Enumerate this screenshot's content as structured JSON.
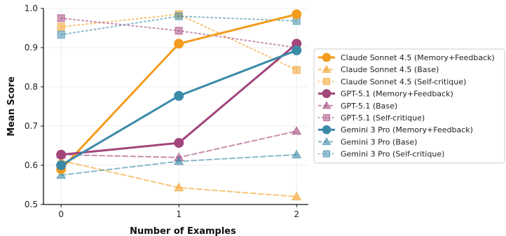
{
  "chart_data": {
    "type": "line",
    "title": "",
    "xlabel": "Number of Examples",
    "ylabel": "Mean Score",
    "x": [
      0,
      1,
      2
    ],
    "xticks": [
      "0",
      "1",
      "2"
    ],
    "yticks": [
      "0.5",
      "0.6",
      "0.7",
      "0.8",
      "0.9",
      "1.0"
    ],
    "ylim": [
      0.5,
      1.0
    ],
    "xlim": [
      -0.15,
      2.1
    ],
    "grid": true,
    "legend_position": "right",
    "series": [
      {
        "name": "Claude Sonnet 4.5 (Memory+Feedback)",
        "model": "claude",
        "variant": "memory",
        "color": "#F39C1E",
        "values": [
          0.59,
          0.91,
          0.985
        ]
      },
      {
        "name": "Claude Sonnet 4.5 (Base)",
        "model": "claude",
        "variant": "base",
        "color": "#F39C1E",
        "values": [
          0.612,
          0.543,
          0.52
        ]
      },
      {
        "name": "Claude Sonnet 4.5 (Self-critique)",
        "model": "claude",
        "variant": "self",
        "color": "#F39C1E",
        "values": [
          0.953,
          0.985,
          0.843
        ]
      },
      {
        "name": "GPT-5.1 (Memory+Feedback)",
        "model": "gpt",
        "variant": "memory",
        "color": "#A2457A",
        "values": [
          0.627,
          0.657,
          0.91
        ]
      },
      {
        "name": "GPT-5.1 (Base)",
        "model": "gpt",
        "variant": "base",
        "color": "#A2457A",
        "values": [
          0.627,
          0.62,
          0.687
        ]
      },
      {
        "name": "GPT-5.1 (Self-critique)",
        "model": "gpt",
        "variant": "self",
        "color": "#A2457A",
        "values": [
          0.975,
          0.943,
          0.9
        ]
      },
      {
        "name": "Gemini 3 Pro (Memory+Feedback)",
        "model": "gemini",
        "variant": "memory",
        "color": "#3A8AA8",
        "values": [
          0.6,
          0.777,
          0.893
        ]
      },
      {
        "name": "Gemini 3 Pro (Base)",
        "model": "gemini",
        "variant": "base",
        "color": "#3A8AA8",
        "values": [
          0.575,
          0.61,
          0.627
        ]
      },
      {
        "name": "Gemini 3 Pro (Self-critique)",
        "model": "gemini",
        "variant": "self",
        "color": "#3A8AA8",
        "values": [
          0.933,
          0.98,
          0.968
        ]
      }
    ]
  }
}
